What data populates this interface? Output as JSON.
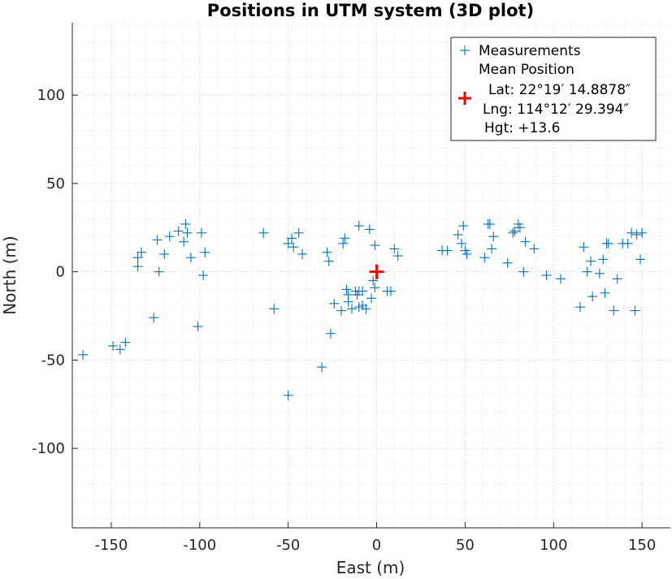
{
  "chart_data": {
    "type": "scatter",
    "title": "Positions in UTM system (3D plot)",
    "xlabel": "East (m)",
    "ylabel": "North (m)",
    "xlim": [
      -172,
      166
    ],
    "ylim": [
      -145,
      141
    ],
    "xticks": [
      -150,
      -100,
      -50,
      0,
      50,
      100,
      150
    ],
    "yticks": [
      -100,
      -50,
      0,
      50,
      100
    ],
    "grid": "on (major and minor, dotted)",
    "legend_position": "top-right",
    "legend": {
      "measurements": "Measurements",
      "mean_header": "Mean Position",
      "lat": "Lat: 22°19′ 14.8878″",
      "lng": "Lng: 114°12′ 29.394″",
      "hgt": "Hgt: +13.6"
    },
    "series": [
      {
        "name": "Measurements",
        "color": "#0072bd",
        "marker": "plus",
        "x": [
          -166,
          -149,
          -145,
          -142,
          -135,
          -135,
          -133,
          -126,
          -124,
          -123,
          -120,
          -117,
          -112,
          -109,
          -108,
          -107,
          -105,
          -101,
          -99,
          -98,
          -97,
          -64,
          -58,
          -50,
          -50,
          -48,
          -47,
          -44,
          -42,
          -31,
          -28,
          -27,
          -26,
          -24,
          -20,
          -19,
          -18,
          -17,
          -16,
          -16,
          -14,
          -12,
          -11,
          -10,
          -10,
          -10,
          -8,
          -8,
          -6,
          -4,
          -3,
          -2,
          -1,
          -1,
          6,
          8,
          10,
          12,
          37,
          40,
          46,
          48,
          49,
          50,
          51,
          61,
          63,
          64,
          65,
          66,
          74,
          77,
          78,
          80,
          81,
          83,
          84,
          89,
          96,
          104,
          115,
          117,
          119,
          121,
          122,
          126,
          128,
          129,
          130,
          131,
          134,
          136,
          139,
          142,
          144,
          146,
          147,
          149,
          150
        ],
        "y": [
          -47,
          -42,
          -44,
          -40,
          3,
          8,
          11,
          -26,
          18,
          0,
          10,
          20,
          23,
          17,
          27,
          22,
          8,
          -31,
          22,
          -2,
          11,
          22,
          -21,
          -70,
          16,
          19,
          14,
          22,
          10,
          -54,
          11,
          6,
          -35,
          -18,
          -22,
          16,
          19,
          -10,
          -13,
          -17,
          -21,
          -11,
          -13,
          26,
          -20,
          -11,
          -11,
          -19,
          -21,
          24,
          -15,
          -5,
          15,
          -9,
          -11,
          -11,
          13,
          9,
          12,
          12,
          21,
          16,
          26,
          12,
          10,
          8,
          27,
          27,
          13,
          20,
          5,
          22,
          23,
          27,
          25,
          0,
          17,
          13,
          -2,
          -4,
          -20,
          14,
          0,
          6,
          -14,
          -1,
          7,
          -12,
          16,
          16,
          -22,
          -4,
          16,
          16,
          22,
          -22,
          21,
          7,
          22
        ]
      },
      {
        "name": "Mean Position",
        "color": "#ff0000",
        "marker": "plus-bold",
        "x": [
          0
        ],
        "y": [
          0
        ]
      }
    ]
  },
  "colors": {
    "measurements": "#0072bd",
    "mean": "#ff0000",
    "grid": "#dedede",
    "axis": "#262626"
  }
}
